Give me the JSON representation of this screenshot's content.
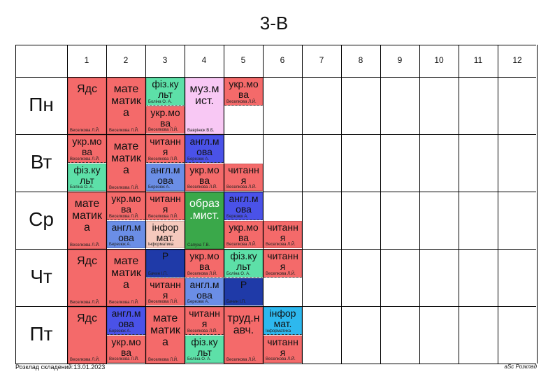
{
  "title": "3-В",
  "columns": [
    "1",
    "2",
    "3",
    "4",
    "5",
    "6",
    "7",
    "8",
    "9",
    "10",
    "11",
    "12"
  ],
  "days": [
    "Пн",
    "Вт",
    "Ср",
    "Чт",
    "Пт"
  ],
  "colors": {
    "red": "#f46a6a",
    "green": "#5de0a8",
    "pink": "#f8c8f4",
    "blue": "#4a52e8",
    "cornflower": "#6b8ee6",
    "darkblue": "#1f3aa8",
    "darkgreen": "#3aa84a",
    "peach": "#f5c9bd",
    "cyan": "#2db8ee"
  },
  "lessons": [
    {
      "d": 0,
      "c": 0,
      "span": 1,
      "part": "full",
      "subj": "Ядс",
      "tch": "Веселкова Л.Й.",
      "color": "red"
    },
    {
      "d": 0,
      "c": 1,
      "span": 1,
      "part": "full",
      "subj": "мате матик а",
      "tch": "Веселкова Л.Й.",
      "color": "red"
    },
    {
      "d": 0,
      "c": 2,
      "span": 1,
      "part": "top",
      "subj": "фіз.ку льт",
      "tch": "Боліна О. А.",
      "color": "green"
    },
    {
      "d": 0,
      "c": 2,
      "span": 1,
      "part": "bottom",
      "subj": "укр.мо ва",
      "tch": "Веселкова Л.Й.",
      "color": "red"
    },
    {
      "d": 0,
      "c": 3,
      "span": 1,
      "part": "full",
      "subj": "муз.м ист.",
      "tch": "Ваврінюк В.Б.",
      "color": "pink"
    },
    {
      "d": 0,
      "c": 4,
      "span": 1,
      "part": "top",
      "subj": "укр.мо ва",
      "tch": "Веселкова Л.Й.",
      "color": "red"
    },
    {
      "d": 1,
      "c": 0,
      "span": 1,
      "part": "top",
      "subj": "укр.мо ва",
      "tch": "Веселкова Л.Й.",
      "color": "red"
    },
    {
      "d": 1,
      "c": 0,
      "span": 1,
      "part": "bottom",
      "subj": "фіз.ку льт",
      "tch": "Боліна О. А.",
      "color": "green"
    },
    {
      "d": 1,
      "c": 1,
      "span": 1,
      "part": "full",
      "subj": "мате матик а",
      "tch": "Веселкова Л.Й.",
      "color": "red"
    },
    {
      "d": 1,
      "c": 2,
      "span": 1,
      "part": "top",
      "subj": "читанн я",
      "tch": "Веселкова Л.Й.",
      "color": "red"
    },
    {
      "d": 1,
      "c": 2,
      "span": 1,
      "part": "bottom",
      "subj": "англ.м ова",
      "tch": "Березюк А.",
      "color": "cornflower"
    },
    {
      "d": 1,
      "c": 3,
      "span": 1,
      "part": "top",
      "subj": "англ.м ова",
      "tch": "Березюк А.",
      "color": "blue"
    },
    {
      "d": 1,
      "c": 3,
      "span": 1,
      "part": "bottom",
      "subj": "укр.мо ва",
      "tch": "Веселкова Л.Й.",
      "color": "red"
    },
    {
      "d": 1,
      "c": 4,
      "span": 1,
      "part": "bottom",
      "subj": "читанн я",
      "tch": "Веселкова Л.Й.",
      "color": "red"
    },
    {
      "d": 2,
      "c": 0,
      "span": 1,
      "part": "full",
      "subj": "мате матик а",
      "tch": "Веселкова Л.Й.",
      "color": "red"
    },
    {
      "d": 2,
      "c": 1,
      "span": 1,
      "part": "top",
      "subj": "укр.мо ва",
      "tch": "Веселкова Л.Й.",
      "color": "red"
    },
    {
      "d": 2,
      "c": 1,
      "span": 1,
      "part": "bottom",
      "subj": "англ.м ова",
      "tch": "Березюк А.",
      "color": "cornflower"
    },
    {
      "d": 2,
      "c": 2,
      "span": 1,
      "part": "top",
      "subj": "читанн я",
      "tch": "Веселкова Л.Й.",
      "color": "red"
    },
    {
      "d": 2,
      "c": 2,
      "span": 1,
      "part": "bottom",
      "subj": "інфор мат.",
      "tch": "Інформатика",
      "color": "peach"
    },
    {
      "d": 2,
      "c": 3,
      "span": 1,
      "part": "full",
      "subj": "образ .мист.",
      "tch": "Сапуха Т.В.",
      "color": "darkgreen"
    },
    {
      "d": 2,
      "c": 4,
      "span": 1,
      "part": "top",
      "subj": "англ.м ова",
      "tch": "Березюк А.",
      "color": "blue"
    },
    {
      "d": 2,
      "c": 4,
      "span": 1,
      "part": "bottom",
      "subj": "укр.мо ва",
      "tch": "Веселкова Л.Й.",
      "color": "red"
    },
    {
      "d": 2,
      "c": 5,
      "span": 1,
      "part": "bottom",
      "subj": "читанн я",
      "tch": "Веселкова Л.Й.",
      "color": "red"
    },
    {
      "d": 3,
      "c": 0,
      "span": 1,
      "part": "full",
      "subj": "Ядс",
      "tch": "Веселкова Л.Й.",
      "color": "red"
    },
    {
      "d": 3,
      "c": 1,
      "span": 1,
      "part": "full",
      "subj": "мате матик а",
      "tch": "Веселкова Л.Й.",
      "color": "red"
    },
    {
      "d": 3,
      "c": 2,
      "span": 1,
      "part": "top",
      "subj": "Р",
      "tch": "Бачин І.П.",
      "color": "darkblue"
    },
    {
      "d": 3,
      "c": 2,
      "span": 1,
      "part": "bottom",
      "subj": "читанн я",
      "tch": "Веселкова Л.Й.",
      "color": "red"
    },
    {
      "d": 3,
      "c": 3,
      "span": 1,
      "part": "top",
      "subj": "укр.мо ва",
      "tch": "Веселкова Л.Й.",
      "color": "red"
    },
    {
      "d": 3,
      "c": 3,
      "span": 1,
      "part": "bottom",
      "subj": "англ.м ова",
      "tch": "Березюк А.",
      "color": "cornflower"
    },
    {
      "d": 3,
      "c": 4,
      "span": 1,
      "part": "top",
      "subj": "фіз.ку льт",
      "tch": "Боліна О. А.",
      "color": "green"
    },
    {
      "d": 3,
      "c": 4,
      "span": 1,
      "part": "bottom",
      "subj": "Р",
      "tch": "Бачин І.П.",
      "color": "darkblue"
    },
    {
      "d": 3,
      "c": 5,
      "span": 1,
      "part": "top",
      "subj": "читанн я",
      "tch": "Веселкова Л.Й.",
      "color": "red"
    },
    {
      "d": 4,
      "c": 0,
      "span": 1,
      "part": "full",
      "subj": "Ядс",
      "tch": "Веселкова Л.Й.",
      "color": "red"
    },
    {
      "d": 4,
      "c": 1,
      "span": 1,
      "part": "top",
      "subj": "англ.м ова",
      "tch": "Березюк А.",
      "color": "blue"
    },
    {
      "d": 4,
      "c": 1,
      "span": 1,
      "part": "bottom",
      "subj": "укр.мо ва",
      "tch": "Веселкова Л.Й.",
      "color": "red"
    },
    {
      "d": 4,
      "c": 2,
      "span": 1,
      "part": "full",
      "subj": "мате матик а",
      "tch": "Веселкова Л.Й.",
      "color": "red"
    },
    {
      "d": 4,
      "c": 3,
      "span": 1,
      "part": "top",
      "subj": "читанн я",
      "tch": "Веселкова Л.Й.",
      "color": "red"
    },
    {
      "d": 4,
      "c": 3,
      "span": 1,
      "part": "bottom",
      "subj": "фіз.ку льт",
      "tch": "Боліна О. А.",
      "color": "green"
    },
    {
      "d": 4,
      "c": 4,
      "span": 1,
      "part": "full",
      "subj": "труд.н авч.",
      "tch": "Веселкова Л.Й.",
      "color": "red"
    },
    {
      "d": 4,
      "c": 5,
      "span": 1,
      "part": "top",
      "subj": "інфор мат.",
      "tch": "Інформатика",
      "color": "cyan"
    },
    {
      "d": 4,
      "c": 5,
      "span": 1,
      "part": "bottom",
      "subj": "читанн я",
      "tch": "Веселкова Л.Й.",
      "color": "red"
    }
  ],
  "footer": {
    "left": "Розклад складений:13.01.2023",
    "right": "aSc Розклад"
  }
}
